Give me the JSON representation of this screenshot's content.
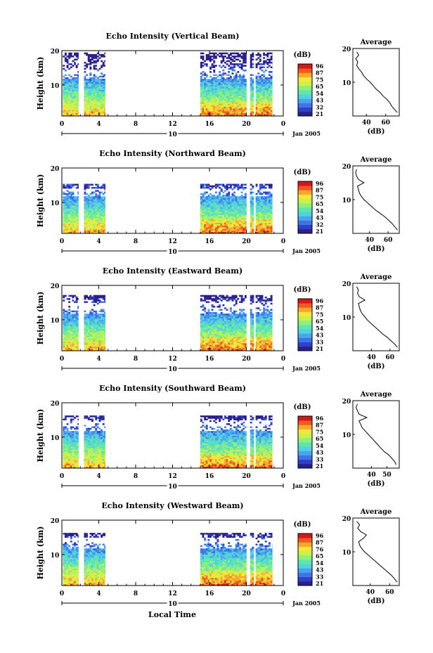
{
  "colors": {
    "background": "#ffffff",
    "colorbar": [
      "#2b1f8a",
      "#3040c8",
      "#3f74e6",
      "#49a6ee",
      "#52d2e0",
      "#5fe6b0",
      "#8cf07a",
      "#c8f050",
      "#f5e63a",
      "#f7a62e",
      "#ef5a22",
      "#d41818"
    ]
  },
  "figure": {
    "xlabel": "Local Time",
    "date_label": "Jan 2005"
  },
  "chart_data": [
    {
      "type": "heatmap",
      "title": "Echo Intensity (Vertical Beam)",
      "ylabel": "Height (km)",
      "xlim": [
        0,
        24
      ],
      "ylim": [
        1,
        20
      ],
      "x_ticks": [
        "0",
        "4",
        "8",
        "12",
        "16",
        "20",
        "0"
      ],
      "y_ticks": [
        "20",
        "10"
      ],
      "date_tick": "10",
      "colorbar": {
        "unit": "(dB)",
        "ticks": [
          "96",
          "87",
          "75",
          "65",
          "54",
          "43",
          "32",
          "21"
        ]
      },
      "data_segments": [
        [
          0.1,
          1.8
        ],
        [
          2.4,
          4.7
        ],
        [
          15,
          22.8
        ]
      ],
      "data_gaps": [
        [
          19.8,
          20.2
        ],
        [
          20.6,
          20.9
        ]
      ],
      "top_height_km": 19,
      "average_profile": {
        "title": "Average",
        "xlabel": "(dB)",
        "x_ticks": [
          "40",
          "60"
        ],
        "y_ticks": [
          "20",
          "10"
        ],
        "xlim": [
          26,
          74
        ],
        "ylim": [
          0,
          20
        ],
        "dB": [
          72,
          69,
          66,
          64,
          61,
          57,
          54,
          50,
          47,
          44,
          40,
          37,
          35,
          32,
          30,
          31,
          29,
          32,
          30
        ],
        "km": [
          1,
          2,
          3,
          4,
          5,
          6,
          7,
          8,
          9,
          10,
          11,
          12,
          13,
          14,
          15,
          16,
          17,
          18,
          19
        ]
      }
    },
    {
      "type": "heatmap",
      "title": "Echo Intensity (Northward Beam)",
      "ylabel": "Height (km)",
      "xlim": [
        0,
        24
      ],
      "ylim": [
        1,
        20
      ],
      "x_ticks": [
        "0",
        "4",
        "8",
        "12",
        "16",
        "20",
        "0"
      ],
      "y_ticks": [
        "20",
        "10"
      ],
      "date_tick": "10",
      "colorbar": {
        "unit": "(dB)",
        "ticks": [
          "96",
          "87",
          "75",
          "65",
          "54",
          "43",
          "32",
          "21"
        ]
      },
      "data_segments": [
        [
          0.1,
          1.8
        ],
        [
          2.4,
          4.7
        ],
        [
          15,
          22.8
        ]
      ],
      "data_gaps": [
        [
          19.8,
          20.2
        ],
        [
          20.6,
          20.9
        ]
      ],
      "top_height_km": 15,
      "average_profile": {
        "title": "Average",
        "xlabel": "(dB)",
        "x_ticks": [
          "40",
          "60"
        ],
        "y_ticks": [
          "20",
          "10"
        ],
        "xlim": [
          22,
          72
        ],
        "ylim": [
          0,
          20
        ],
        "dB": [
          70,
          67,
          64,
          60,
          56,
          51,
          46,
          42,
          38,
          34,
          31,
          29,
          28,
          27,
          34,
          28,
          26,
          25,
          26
        ],
        "km": [
          1,
          2,
          3,
          4,
          5,
          6,
          7,
          8,
          9,
          10,
          11,
          12,
          13,
          14,
          15,
          16,
          17,
          18,
          19
        ]
      }
    },
    {
      "type": "heatmap",
      "title": "Echo Intensity (Eastward Beam)",
      "ylabel": "Height (km)",
      "xlim": [
        0,
        24
      ],
      "ylim": [
        1,
        20
      ],
      "x_ticks": [
        "0",
        "4",
        "8",
        "12",
        "16",
        "20",
        "0"
      ],
      "y_ticks": [
        "20",
        "10"
      ],
      "date_tick": "10",
      "colorbar": {
        "unit": "(dB)",
        "ticks": [
          "96",
          "87",
          "75",
          "65",
          "54",
          "43",
          "33",
          "21"
        ]
      },
      "data_segments": [
        [
          0.1,
          1.8
        ],
        [
          2.4,
          4.7
        ],
        [
          15,
          22.8
        ]
      ],
      "data_gaps": [
        [
          19.8,
          20.2
        ],
        [
          20.6,
          20.9
        ]
      ],
      "top_height_km": 17,
      "average_profile": {
        "title": "Average",
        "xlabel": "(dB)",
        "x_ticks": [
          "40",
          "60"
        ],
        "y_ticks": [
          "20",
          "10"
        ],
        "xlim": [
          20,
          70
        ],
        "ylim": [
          0,
          20
        ],
        "dB": [
          68,
          65,
          61,
          57,
          52,
          48,
          44,
          40,
          36,
          33,
          30,
          28,
          27,
          26,
          33,
          27,
          25,
          26,
          24
        ],
        "km": [
          1,
          2,
          3,
          4,
          5,
          6,
          7,
          8,
          9,
          10,
          11,
          12,
          13,
          14,
          15,
          16,
          17,
          18,
          19
        ]
      }
    },
    {
      "type": "heatmap",
      "title": "Echo Intensity (Southward Beam)",
      "ylabel": "Height (km)",
      "xlim": [
        0,
        24
      ],
      "ylim": [
        1,
        20
      ],
      "x_ticks": [
        "0",
        "4",
        "8",
        "12",
        "16",
        "20",
        "0"
      ],
      "y_ticks": [
        "20",
        "10"
      ],
      "date_tick": "10",
      "colorbar": {
        "unit": "(dB)",
        "ticks": [
          "96",
          "87",
          "75",
          "65",
          "54",
          "43",
          "33",
          "21"
        ]
      },
      "data_segments": [
        [
          0.1,
          1.8
        ],
        [
          2.4,
          4.7
        ],
        [
          15,
          22.8
        ]
      ],
      "data_gaps": [
        [
          19.8,
          20.2
        ],
        [
          20.6,
          20.9
        ]
      ],
      "top_height_km": 16,
      "average_profile": {
        "title": "Average",
        "xlabel": "(dB)",
        "x_ticks": [
          "40",
          "50"
        ],
        "y_ticks": [
          "20",
          "10"
        ],
        "xlim": [
          28,
          58
        ],
        "ylim": [
          0,
          20
        ],
        "dB": [
          56,
          55,
          53,
          51,
          48,
          46,
          44,
          42,
          40,
          38,
          36,
          34,
          33,
          32,
          37,
          32,
          31,
          30,
          31
        ],
        "km": [
          1,
          2,
          3,
          4,
          5,
          6,
          7,
          8,
          9,
          10,
          11,
          12,
          13,
          14,
          15,
          16,
          17,
          18,
          19
        ]
      }
    },
    {
      "type": "heatmap",
      "title": "Echo Intensity (Westward Beam)",
      "ylabel": "Height (km)",
      "xlim": [
        0,
        24
      ],
      "ylim": [
        1,
        20
      ],
      "x_ticks": [
        "0",
        "4",
        "8",
        "12",
        "16",
        "20",
        "0"
      ],
      "y_ticks": [
        "20",
        "10"
      ],
      "date_tick": "10",
      "colorbar": {
        "unit": "(dB)",
        "ticks": [
          "96",
          "87",
          "76",
          "65",
          "54",
          "43",
          "33",
          "21"
        ]
      },
      "data_segments": [
        [
          0.1,
          1.8
        ],
        [
          2.4,
          4.7
        ],
        [
          15,
          22.8
        ]
      ],
      "data_gaps": [
        [
          19.8,
          20.2
        ],
        [
          20.6,
          20.9
        ]
      ],
      "top_height_km": 16,
      "average_profile": {
        "title": "Average",
        "xlabel": "(dB)",
        "x_ticks": [
          "40",
          "60"
        ],
        "y_ticks": [
          "20",
          "10"
        ],
        "xlim": [
          22,
          70
        ],
        "ylim": [
          0,
          20
        ],
        "dB": [
          68,
          65,
          62,
          58,
          54,
          50,
          46,
          42,
          38,
          34,
          31,
          29,
          28,
          33,
          36,
          30,
          27,
          29,
          26
        ],
        "km": [
          1,
          2,
          3,
          4,
          5,
          6,
          7,
          8,
          9,
          10,
          11,
          12,
          13,
          14,
          15,
          16,
          17,
          18,
          19
        ]
      }
    }
  ]
}
